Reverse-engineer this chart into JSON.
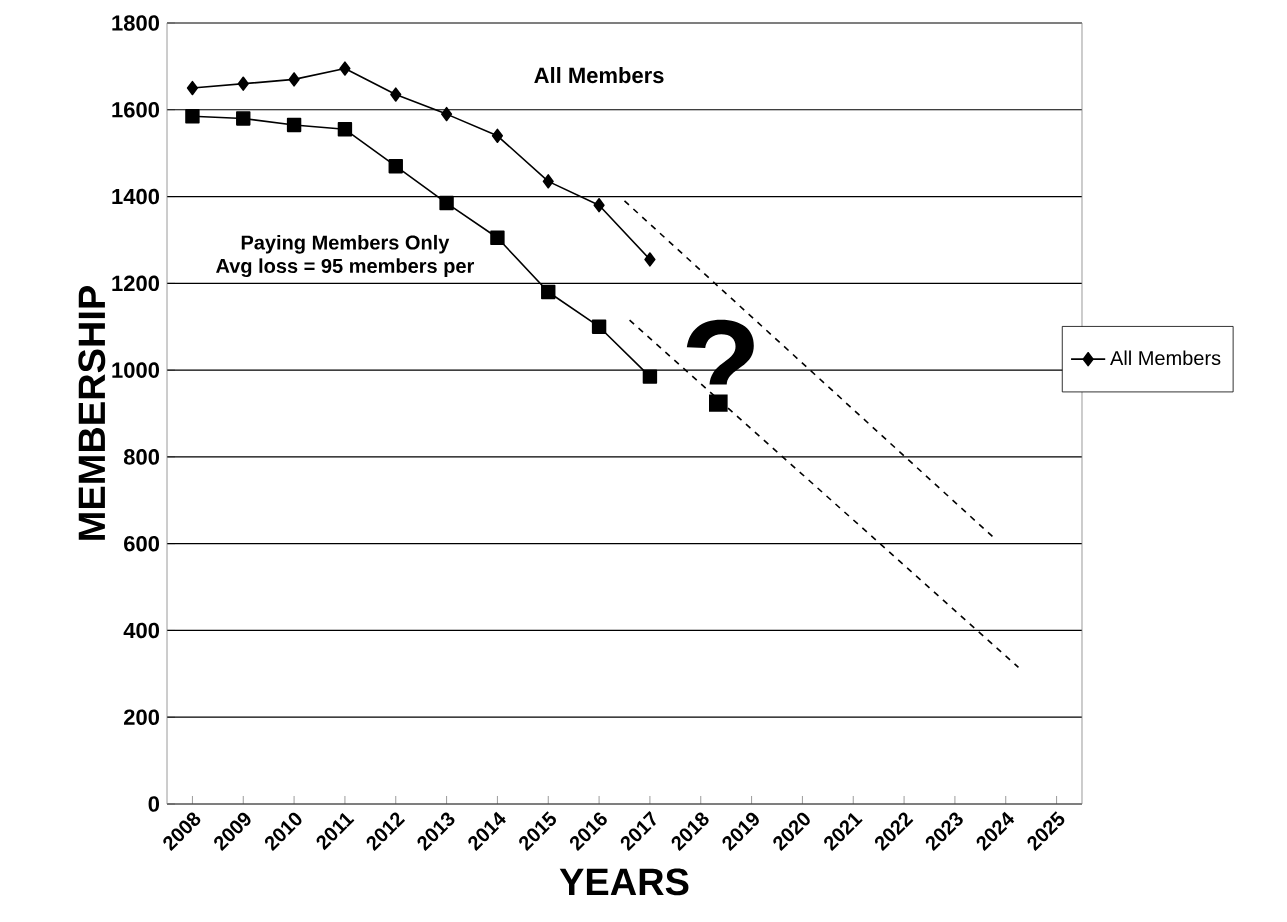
{
  "chart_data": {
    "type": "line",
    "xlabel": "YEARS",
    "ylabel": "MEMBERSHIP",
    "x": [
      2008,
      2009,
      2010,
      2011,
      2012,
      2013,
      2014,
      2015,
      2016,
      2017
    ],
    "xlim": [
      2007.5,
      2025.5
    ],
    "xticks": [
      2008,
      2009,
      2010,
      2011,
      2012,
      2013,
      2014,
      2015,
      2016,
      2017,
      2018,
      2019,
      2020,
      2021,
      2022,
      2023,
      2024,
      2025
    ],
    "ylim": [
      0,
      1800
    ],
    "yticks": [
      0,
      200,
      400,
      600,
      800,
      1000,
      1200,
      1400,
      1600,
      1800
    ],
    "grid": "y",
    "legend": "right",
    "annotations": [
      "All Members",
      "Paying Members Only",
      "Avg loss = 95 members per",
      "?"
    ],
    "series": [
      {
        "name": "All Members",
        "color": "#000000",
        "marker": "diamond",
        "values": [
          1650,
          1660,
          1670,
          1695,
          1635,
          1590,
          1540,
          1435,
          1380,
          1255
        ]
      },
      {
        "color": "#000000",
        "marker": "square",
        "values": [
          1585,
          1580,
          1565,
          1555,
          1470,
          1385,
          1305,
          1180,
          1100,
          985
        ]
      },
      {
        "type": "line",
        "color": "#000000",
        "line_style": "dashed",
        "marker": "none",
        "x": [
          2016.5,
          2023.8
        ],
        "values": [
          1390,
          610
        ]
      },
      {
        "type": "line",
        "color": "#000000",
        "line_style": "dashed",
        "marker": "none",
        "x": [
          2016.6,
          2024.25
        ],
        "values": [
          1115,
          315
        ]
      }
    ]
  }
}
